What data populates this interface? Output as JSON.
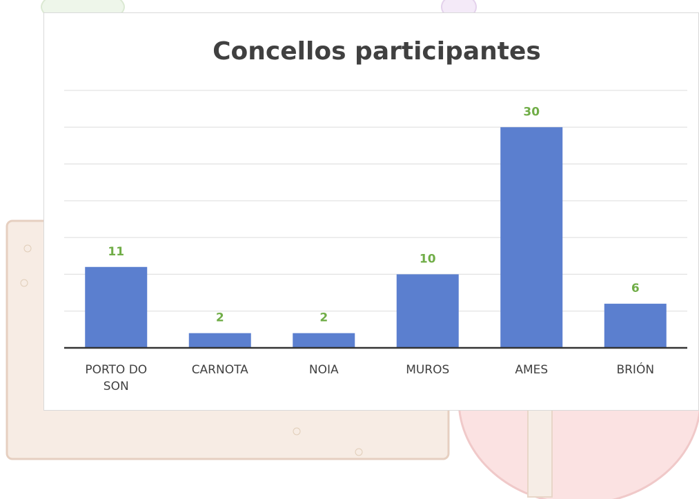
{
  "chart_data": {
    "type": "bar",
    "title": "Concellos participantes",
    "categories": [
      "PORTO DO SON",
      "CARNOTA",
      "NOIA",
      "MUROS",
      "AMES",
      "BRIÓN"
    ],
    "values": [
      11,
      2,
      2,
      10,
      30,
      6
    ],
    "color": "#5b7fcf",
    "label_color": "#70ad47",
    "ylim": [
      0,
      35
    ],
    "yticks": [
      0,
      5,
      10,
      15,
      20,
      25,
      30,
      35
    ],
    "grid": true
  }
}
